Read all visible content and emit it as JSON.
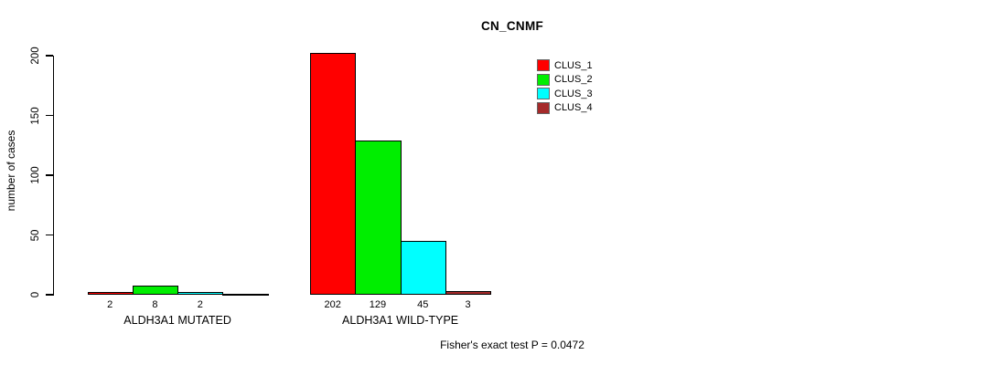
{
  "chart_data": {
    "type": "bar",
    "title": "CN_CNMF",
    "xlabel": "",
    "ylabel": "number of cases",
    "ylim": [
      0,
      200
    ],
    "yticks": [
      "0",
      "50",
      "100",
      "150",
      "200"
    ],
    "ytick_values": [
      0,
      50,
      100,
      150,
      200
    ],
    "grid": false,
    "legend_position": "top-right",
    "categories": [
      "ALDH3A1 MUTATED",
      "ALDH3A1 WILD-TYPE"
    ],
    "series": [
      {
        "name": "CLUS_1",
        "color": "#ff0000",
        "values": [
          2,
          202
        ]
      },
      {
        "name": "CLUS_2",
        "color": "#00ee00",
        "values": [
          8,
          129
        ]
      },
      {
        "name": "CLUS_3",
        "color": "#00ffff",
        "values": [
          2,
          45
        ]
      },
      {
        "name": "CLUS_4",
        "color": "#a52a2a",
        "values": [
          0,
          3
        ]
      }
    ],
    "bar_value_labels": [
      [
        "2",
        "8",
        "2",
        ""
      ],
      [
        "202",
        "129",
        "45",
        "3"
      ]
    ],
    "annotation": "Fisher's exact test P = 0.0472"
  },
  "colors": {
    "axis": "#000000",
    "text": "#000000",
    "background": "#ffffff"
  }
}
